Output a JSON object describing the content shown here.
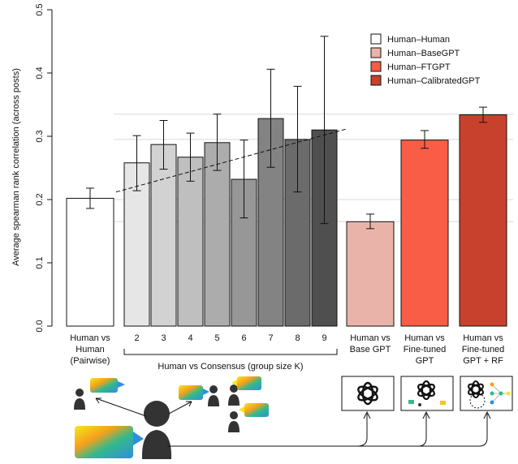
{
  "chart_data": {
    "type": "bar",
    "ylabel": "Average spearman rank correlation (across posts)",
    "ylim": [
      0,
      0.5
    ],
    "yticks": [
      "0.0",
      "0.1",
      "0.2",
      "0.3",
      "0.4",
      "0.5"
    ],
    "grid_lines": [
      0.165,
      0.2,
      0.295,
      0.335
    ],
    "legend": {
      "placement": "top-right",
      "entries": [
        {
          "label": "Human–Human",
          "color": "#ffffff"
        },
        {
          "label": "Human–BaseGPT",
          "color": "#eab3aa"
        },
        {
          "label": "Human–FTGPT",
          "color": "#fa5d45"
        },
        {
          "label": "Human–CalibratedGPT",
          "color": "#c8412c"
        }
      ]
    },
    "bars": [
      {
        "value": 0.202,
        "err_low": 0.186,
        "err_high": 0.218,
        "color": "#ffffff"
      },
      {
        "value": 0.258,
        "err_low": 0.214,
        "err_high": 0.301,
        "color": "#e6e6e6"
      },
      {
        "value": 0.287,
        "err_low": 0.248,
        "err_high": 0.325,
        "color": "#d2d2d2"
      },
      {
        "value": 0.267,
        "err_low": 0.229,
        "err_high": 0.305,
        "color": "#bfbfbf"
      },
      {
        "value": 0.29,
        "err_low": 0.246,
        "err_high": 0.335,
        "color": "#acacac"
      },
      {
        "value": 0.232,
        "err_low": 0.171,
        "err_high": 0.294,
        "color": "#979797"
      },
      {
        "value": 0.328,
        "err_low": 0.251,
        "err_high": 0.406,
        "color": "#838383"
      },
      {
        "value": 0.295,
        "err_low": 0.212,
        "err_high": 0.379,
        "color": "#6b6b6b"
      },
      {
        "value": 0.31,
        "err_low": 0.162,
        "err_high": 0.458,
        "color": "#4f4f4f"
      },
      {
        "value": 0.165,
        "err_low": 0.154,
        "err_high": 0.177,
        "color": "#eab3aa"
      },
      {
        "value": 0.294,
        "err_low": 0.281,
        "err_high": 0.309,
        "color": "#fa5d45"
      },
      {
        "value": 0.334,
        "err_low": 0.322,
        "err_high": 0.346,
        "color": "#c8412c"
      }
    ],
    "trend_line": {
      "from": 0.212,
      "to": 0.31
    },
    "consensus_ticks": [
      "2",
      "3",
      "4",
      "5",
      "6",
      "7",
      "8",
      "9"
    ],
    "group_labels": [
      {
        "lines": [
          "Human vs",
          "Human",
          "(Pairwise)"
        ]
      },
      {
        "lines": [
          "Human vs",
          "Base GPT"
        ]
      },
      {
        "lines": [
          "Human vs",
          "Fine-tuned",
          "GPT"
        ]
      },
      {
        "lines": [
          "Human vs",
          "Fine-tuned",
          "GPT + RF"
        ]
      }
    ],
    "consensus_label": "Human vs Consensus (group size K)"
  }
}
